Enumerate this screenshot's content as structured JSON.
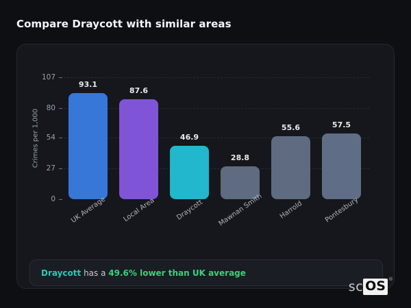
{
  "page": {
    "title": "Compare Draycott with similar areas"
  },
  "chart_data": {
    "type": "bar",
    "title": "",
    "categories": [
      "UK Average",
      "Local Area",
      "Draycott",
      "Mawnan Smith",
      "Harrold",
      "Pontesbury"
    ],
    "values": [
      93.1,
      87.6,
      46.9,
      28.8,
      55.6,
      57.5
    ],
    "value_labels": [
      "93.1",
      "87.6",
      "46.9",
      "28.8",
      "55.6",
      "57.5"
    ],
    "bar_colors": [
      "#3777d7",
      "#7f54d6",
      "#22b7cd",
      "#5e6b80",
      "#5e6b80",
      "#5f6d87"
    ],
    "xlabel": "",
    "ylabel": "Crimes per 1,000",
    "yticks": [
      0,
      27,
      54,
      80,
      107
    ],
    "ylim": [
      0,
      107
    ],
    "grid": "dashed-horizontal",
    "legend": "none"
  },
  "note": {
    "area": "Draycott",
    "middle": " has a ",
    "stat": "49.6% lower than UK average",
    "area_color": "#2bc9b8",
    "stat_color": "#3dd07a"
  },
  "logo": {
    "prefix": "sc",
    "suffix": "OS",
    "reg": "®"
  }
}
